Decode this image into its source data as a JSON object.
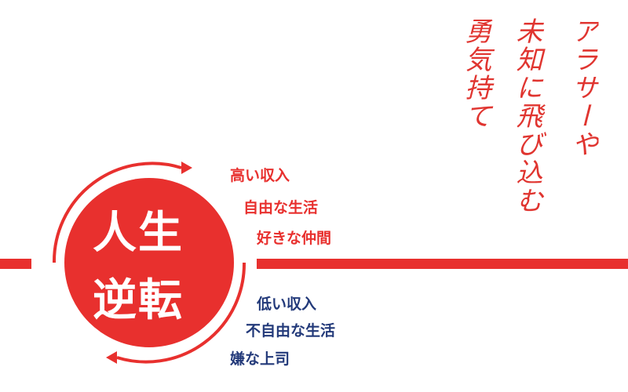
{
  "badge": {
    "line1": "人生",
    "line2": "逆転"
  },
  "good_list": [
    "高い収入",
    "自由な生活",
    "好きな仲間"
  ],
  "bad_list": [
    "低い収入",
    "不自由な生活",
    "嫌な上司"
  ],
  "tagline": [
    "アラサーや",
    "未知に飛び込む",
    "勇気持て"
  ],
  "colors": {
    "red": "#e8302e",
    "navy": "#233a7a",
    "background": "#ffffff"
  }
}
